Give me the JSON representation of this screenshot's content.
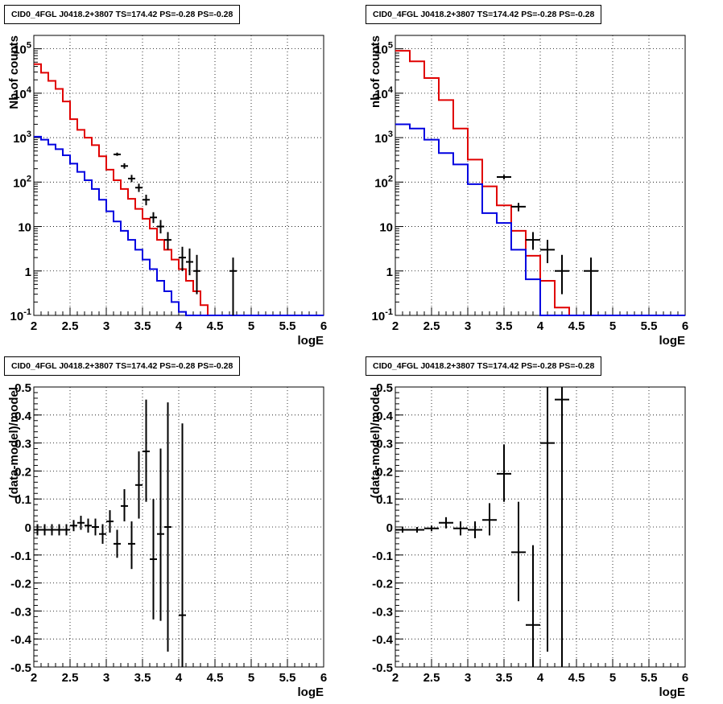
{
  "chart_data": [
    {
      "id": "top-left",
      "type": "histogram-step",
      "title": "CID0_4FGL J0418.2+3807 TS=174.42 PS=-0.28 PS=-0.28",
      "xlabel": "logE",
      "ylabel": "Nb of counts",
      "yscale": "log",
      "xlim": [
        2,
        6
      ],
      "ylim": [
        0.1,
        200000
      ],
      "x_ticks": [
        "2",
        "2.5",
        "3",
        "3.5",
        "4",
        "4.5",
        "5",
        "5.5",
        "6"
      ],
      "y_ticks": [
        "10^{-1}",
        "1",
        "10",
        "10^{2}",
        "10^{3}",
        "10^{4}",
        "10^{5}"
      ],
      "grid": true,
      "bin_edges": [
        2.0,
        2.1,
        2.2,
        2.3,
        2.4,
        2.5,
        2.6,
        2.7,
        2.8,
        2.9,
        3.0,
        3.1,
        3.2,
        3.3,
        3.4,
        3.5,
        3.6,
        3.7,
        3.8,
        3.9,
        4.0,
        4.1,
        4.2,
        4.3,
        4.4,
        4.5,
        4.6,
        4.7,
        4.8,
        4.9,
        5.0,
        5.1,
        5.2,
        5.3,
        5.4,
        5.5,
        5.6,
        5.7,
        5.8,
        5.9,
        6.0
      ],
      "series": [
        {
          "color": "#e00000",
          "values": [
            45000,
            29000,
            19000,
            12500,
            6500,
            2600,
            1500,
            1000,
            680,
            380,
            190,
            110,
            70,
            42,
            25,
            15,
            9,
            5,
            3,
            1.8,
            1.1,
            0.6,
            0.35,
            0.17,
            0.1,
            0.1,
            0.1,
            0.1,
            0.1,
            0.1,
            0.1,
            0.1,
            0.1,
            0.1,
            0.1,
            0.1,
            0.1,
            0.1,
            0.1,
            0.1
          ]
        },
        {
          "color": "#0000e0",
          "values": [
            1050,
            900,
            700,
            550,
            400,
            260,
            170,
            110,
            70,
            40,
            22,
            13,
            8,
            5,
            3,
            1.8,
            1.1,
            0.6,
            0.35,
            0.2,
            0.12,
            0.1,
            0.1,
            0.1,
            0.1,
            0.1,
            0.1,
            0.1,
            0.1,
            0.1,
            0.1,
            0.1,
            0.1,
            0.1,
            0.1,
            0.1,
            0.1,
            0.1,
            0.1,
            0.1
          ]
        }
      ],
      "data_points": [
        {
          "x": 3.15,
          "xerr": 0.05,
          "y": 420,
          "ylo": 390,
          "yhi": 460
        },
        {
          "x": 3.25,
          "xerr": 0.05,
          "y": 230,
          "ylo": 200,
          "yhi": 265
        },
        {
          "x": 3.35,
          "xerr": 0.05,
          "y": 120,
          "ylo": 100,
          "yhi": 145
        },
        {
          "x": 3.45,
          "xerr": 0.05,
          "y": 75,
          "ylo": 60,
          "yhi": 92
        },
        {
          "x": 3.55,
          "xerr": 0.05,
          "y": 40,
          "ylo": 30,
          "yhi": 52
        },
        {
          "x": 3.65,
          "xerr": 0.05,
          "y": 16,
          "ylo": 12,
          "yhi": 21
        },
        {
          "x": 3.75,
          "xerr": 0.05,
          "y": 10,
          "ylo": 7,
          "yhi": 14
        },
        {
          "x": 3.85,
          "xerr": 0.05,
          "y": 5,
          "ylo": 3,
          "yhi": 7.5
        },
        {
          "x": 4.05,
          "xerr": 0.05,
          "y": 2,
          "ylo": 1,
          "yhi": 3.5
        },
        {
          "x": 4.15,
          "xerr": 0.05,
          "y": 1.6,
          "ylo": 0.8,
          "yhi": 3.2
        },
        {
          "x": 4.25,
          "xerr": 0.05,
          "y": 1.0,
          "ylo": 0.3,
          "yhi": 2.3
        },
        {
          "x": 4.75,
          "xerr": 0.05,
          "y": 1.0,
          "ylo": 0.1,
          "yhi": 2.0
        }
      ]
    },
    {
      "id": "top-right",
      "type": "histogram-step",
      "title": "CID0_4FGL J0418.2+3807 TS=174.42 PS=-0.28 PS=-0.28",
      "xlabel": "logE",
      "ylabel": "nb of counts",
      "yscale": "log",
      "xlim": [
        2,
        6
      ],
      "ylim": [
        0.1,
        200000
      ],
      "x_ticks": [
        "2",
        "2.5",
        "3",
        "3.5",
        "4",
        "4.5",
        "5",
        "5.5",
        "6"
      ],
      "y_ticks": [
        "10^{-1}",
        "1",
        "10",
        "10^{2}",
        "10^{3}",
        "10^{4}",
        "10^{5}"
      ],
      "grid": true,
      "bin_edges": [
        2.0,
        2.2,
        2.4,
        2.6,
        2.8,
        3.0,
        3.2,
        3.4,
        3.6,
        3.8,
        4.0,
        4.2,
        4.4,
        4.6,
        4.8,
        5.0,
        5.2,
        5.4,
        5.6,
        5.8,
        6.0
      ],
      "series": [
        {
          "color": "#e00000",
          "values": [
            90000,
            52000,
            22000,
            7000,
            1600,
            320,
            80,
            30,
            8,
            2.2,
            0.6,
            0.15,
            0.1,
            0.1,
            0.1,
            0.1,
            0.1,
            0.1,
            0.1,
            0.1
          ]
        },
        {
          "color": "#0000e0",
          "values": [
            2000,
            1600,
            900,
            450,
            250,
            90,
            20,
            12,
            3,
            0.65,
            0.1,
            0.1,
            0.1,
            0.1,
            0.1,
            0.1,
            0.1,
            0.1,
            0.1,
            0.1
          ]
        }
      ],
      "data_points": [
        {
          "x": 3.5,
          "xerr": 0.1,
          "y": 130,
          "ylo": 115,
          "yhi": 145
        },
        {
          "x": 3.7,
          "xerr": 0.1,
          "y": 28,
          "ylo": 22,
          "yhi": 34
        },
        {
          "x": 3.9,
          "xerr": 0.1,
          "y": 5,
          "ylo": 3,
          "yhi": 7.5
        },
        {
          "x": 4.1,
          "xerr": 0.1,
          "y": 3,
          "ylo": 1.5,
          "yhi": 5
        },
        {
          "x": 4.3,
          "xerr": 0.1,
          "y": 1.0,
          "ylo": 0.3,
          "yhi": 2.3
        },
        {
          "x": 4.7,
          "xerr": 0.1,
          "y": 1.0,
          "ylo": 0.1,
          "yhi": 2.0
        }
      ]
    },
    {
      "id": "bottom-left",
      "type": "scatter-errorbar",
      "title": "CID0_4FGL J0418.2+3807 TS=174.42 PS=-0.28 PS=-0.28",
      "xlabel": "logE",
      "ylabel": "(data-model)/model",
      "yscale": "linear",
      "xlim": [
        2,
        6
      ],
      "ylim": [
        -0.5,
        0.5
      ],
      "x_ticks": [
        "2",
        "2.5",
        "3",
        "3.5",
        "4",
        "4.5",
        "5",
        "5.5",
        "6"
      ],
      "y_ticks": [
        "-0.5",
        "-0.4",
        "-0.3",
        "-0.2",
        "-0.1",
        "0",
        "0.1",
        "0.2",
        "0.3",
        "0.4",
        "0.5"
      ],
      "grid": true,
      "data_points": [
        {
          "x": 2.05,
          "xerr": 0.05,
          "y": -0.01,
          "ylo": -0.03,
          "yhi": 0.01
        },
        {
          "x": 2.15,
          "xerr": 0.05,
          "y": -0.01,
          "ylo": -0.03,
          "yhi": 0.01
        },
        {
          "x": 2.25,
          "xerr": 0.05,
          "y": -0.01,
          "ylo": -0.03,
          "yhi": 0.01
        },
        {
          "x": 2.35,
          "xerr": 0.05,
          "y": -0.01,
          "ylo": -0.03,
          "yhi": 0.01
        },
        {
          "x": 2.45,
          "xerr": 0.05,
          "y": -0.01,
          "ylo": -0.03,
          "yhi": 0.01
        },
        {
          "x": 2.55,
          "xerr": 0.05,
          "y": 0.005,
          "ylo": -0.015,
          "yhi": 0.025
        },
        {
          "x": 2.65,
          "xerr": 0.05,
          "y": 0.015,
          "ylo": -0.01,
          "yhi": 0.04
        },
        {
          "x": 2.75,
          "xerr": 0.05,
          "y": 0.005,
          "ylo": -0.02,
          "yhi": 0.03
        },
        {
          "x": 2.85,
          "xerr": 0.05,
          "y": 0.0,
          "ylo": -0.03,
          "yhi": 0.03
        },
        {
          "x": 2.95,
          "xerr": 0.05,
          "y": -0.025,
          "ylo": -0.06,
          "yhi": 0.01
        },
        {
          "x": 3.05,
          "xerr": 0.05,
          "y": 0.02,
          "ylo": -0.02,
          "yhi": 0.06
        },
        {
          "x": 3.15,
          "xerr": 0.05,
          "y": -0.06,
          "ylo": -0.11,
          "yhi": -0.01
        },
        {
          "x": 3.25,
          "xerr": 0.05,
          "y": 0.075,
          "ylo": 0.02,
          "yhi": 0.135
        },
        {
          "x": 3.35,
          "xerr": 0.05,
          "y": -0.06,
          "ylo": -0.15,
          "yhi": 0.02
        },
        {
          "x": 3.45,
          "xerr": 0.05,
          "y": 0.15,
          "ylo": 0.03,
          "yhi": 0.27
        },
        {
          "x": 3.55,
          "xerr": 0.05,
          "y": 0.27,
          "ylo": 0.09,
          "yhi": 0.455
        },
        {
          "x": 3.65,
          "xerr": 0.05,
          "y": -0.115,
          "ylo": -0.33,
          "yhi": 0.1
        },
        {
          "x": 3.75,
          "xerr": 0.05,
          "y": -0.025,
          "ylo": -0.335,
          "yhi": 0.28
        },
        {
          "x": 3.85,
          "xerr": 0.05,
          "y": 0.0,
          "ylo": -0.445,
          "yhi": 0.445
        },
        {
          "x": 4.05,
          "xerr": 0.05,
          "y": -0.315,
          "ylo": -0.5,
          "yhi": 0.37
        }
      ]
    },
    {
      "id": "bottom-right",
      "type": "scatter-errorbar",
      "title": "CID0_4FGL J0418.2+3807 TS=174.42 PS=-0.28 PS=-0.28",
      "xlabel": "logE",
      "ylabel": "(data-model)/model",
      "yscale": "linear",
      "xlim": [
        2,
        6
      ],
      "ylim": [
        -0.5,
        0.5
      ],
      "x_ticks": [
        "2",
        "2.5",
        "3",
        "3.5",
        "4",
        "4.5",
        "5",
        "5.5",
        "6"
      ],
      "y_ticks": [
        "-0.5",
        "-0.4",
        "-0.3",
        "-0.2",
        "-0.1",
        "0",
        "0.1",
        "0.2",
        "0.3",
        "0.4",
        "0.5"
      ],
      "grid": true,
      "data_points": [
        {
          "x": 2.1,
          "xerr": 0.1,
          "y": -0.01,
          "ylo": -0.02,
          "yhi": 0.0
        },
        {
          "x": 2.3,
          "xerr": 0.1,
          "y": -0.01,
          "ylo": -0.02,
          "yhi": 0.0
        },
        {
          "x": 2.5,
          "xerr": 0.1,
          "y": -0.005,
          "ylo": -0.015,
          "yhi": 0.005
        },
        {
          "x": 2.7,
          "xerr": 0.1,
          "y": 0.015,
          "ylo": -0.005,
          "yhi": 0.035
        },
        {
          "x": 2.9,
          "xerr": 0.1,
          "y": -0.005,
          "ylo": -0.03,
          "yhi": 0.02
        },
        {
          "x": 3.1,
          "xerr": 0.1,
          "y": -0.01,
          "ylo": -0.04,
          "yhi": 0.02
        },
        {
          "x": 3.3,
          "xerr": 0.1,
          "y": 0.025,
          "ylo": -0.03,
          "yhi": 0.085
        },
        {
          "x": 3.5,
          "xerr": 0.1,
          "y": 0.19,
          "ylo": 0.09,
          "yhi": 0.295
        },
        {
          "x": 3.7,
          "xerr": 0.1,
          "y": -0.09,
          "ylo": -0.265,
          "yhi": 0.09
        },
        {
          "x": 3.9,
          "xerr": 0.1,
          "y": -0.35,
          "ylo": -0.5,
          "yhi": -0.065
        },
        {
          "x": 4.1,
          "xerr": 0.1,
          "y": 0.3,
          "ylo": -0.445,
          "yhi": 0.5
        },
        {
          "x": 4.3,
          "xerr": 0.1,
          "y": 0.455,
          "ylo": -0.5,
          "yhi": 0.5
        }
      ]
    }
  ]
}
